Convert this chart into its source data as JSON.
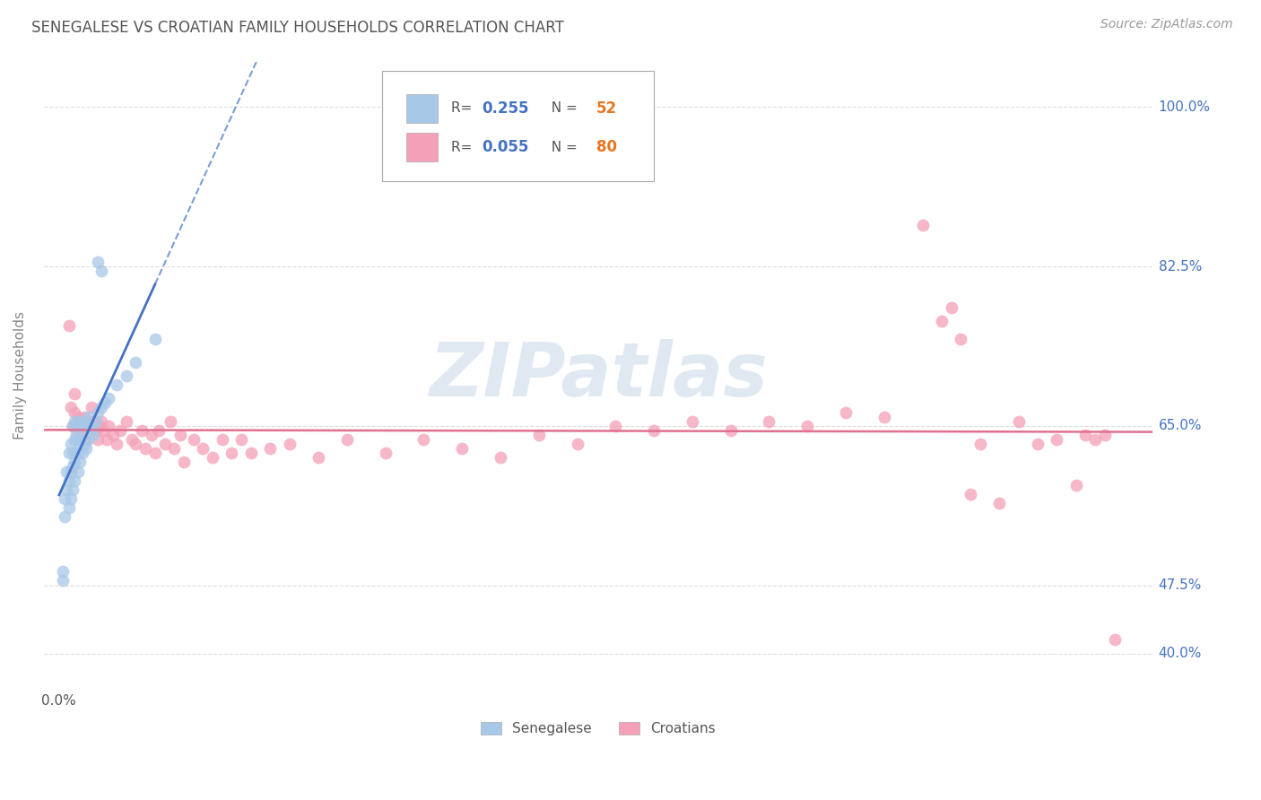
{
  "title": "SENEGALESE VS CROATIAN FAMILY HOUSEHOLDS CORRELATION CHART",
  "source": "Source: ZipAtlas.com",
  "ylabel": "Family Households",
  "senegalese_color": "#a8c8e8",
  "croatian_color": "#f4a0b8",
  "senegalese_line_color": "#4472c4",
  "croatian_line_color": "#e07090",
  "legend_R_color": "#4472c4",
  "legend_N_color": "#e87722",
  "background_color": "#ffffff",
  "grid_color": "#cccccc",
  "title_color": "#333333",
  "watermark_text": "ZIPatlas",
  "watermark_color": "#c8d8e8",
  "ytick_values": [
    40.0,
    47.5,
    65.0,
    82.5,
    100.0
  ],
  "ytick_labels": [
    "40.0%",
    "47.5%",
    "65.0%",
    "82.5%",
    "100.0%"
  ],
  "xlim_min": -0.08,
  "xlim_max": 5.7,
  "ylim_min": 36.0,
  "ylim_max": 105.0,
  "senegalese_R": "0.255",
  "senegalese_N": "52",
  "croatian_R": "0.055",
  "croatian_N": "80",
  "senegalese_x": [
    0.02,
    0.02,
    0.03,
    0.03,
    0.04,
    0.04,
    0.05,
    0.05,
    0.05,
    0.06,
    0.06,
    0.06,
    0.07,
    0.07,
    0.07,
    0.07,
    0.08,
    0.08,
    0.08,
    0.08,
    0.09,
    0.09,
    0.1,
    0.1,
    0.1,
    0.1,
    0.11,
    0.11,
    0.11,
    0.12,
    0.12,
    0.12,
    0.13,
    0.13,
    0.14,
    0.14,
    0.15,
    0.15,
    0.16,
    0.17,
    0.18,
    0.19,
    0.2,
    0.22,
    0.24,
    0.26,
    0.3,
    0.35,
    0.4,
    0.5,
    0.2,
    0.22
  ],
  "senegalese_y": [
    48.0,
    49.0,
    55.0,
    57.0,
    58.0,
    60.0,
    56.0,
    59.0,
    62.0,
    57.0,
    60.0,
    63.0,
    58.0,
    60.5,
    62.0,
    65.0,
    59.0,
    61.0,
    63.5,
    65.5,
    62.0,
    64.0,
    60.0,
    62.0,
    63.5,
    65.5,
    61.0,
    63.0,
    65.0,
    62.0,
    63.5,
    65.0,
    63.0,
    65.5,
    62.5,
    65.0,
    63.5,
    66.0,
    64.5,
    65.0,
    64.0,
    65.5,
    66.5,
    67.0,
    67.5,
    68.0,
    69.5,
    70.5,
    72.0,
    74.5,
    83.0,
    82.0
  ],
  "croatian_x": [
    0.05,
    0.06,
    0.07,
    0.08,
    0.08,
    0.09,
    0.1,
    0.1,
    0.11,
    0.12,
    0.13,
    0.14,
    0.15,
    0.15,
    0.16,
    0.17,
    0.18,
    0.19,
    0.2,
    0.21,
    0.22,
    0.23,
    0.25,
    0.26,
    0.28,
    0.3,
    0.32,
    0.35,
    0.38,
    0.4,
    0.43,
    0.45,
    0.48,
    0.5,
    0.52,
    0.55,
    0.58,
    0.6,
    0.63,
    0.65,
    0.7,
    0.75,
    0.8,
    0.85,
    0.9,
    0.95,
    1.0,
    1.1,
    1.2,
    1.35,
    1.5,
    1.7,
    1.9,
    2.1,
    2.3,
    2.5,
    2.7,
    2.9,
    3.1,
    3.3,
    3.5,
    3.7,
    3.9,
    4.1,
    4.3,
    4.5,
    4.6,
    4.65,
    4.7,
    4.75,
    4.8,
    4.9,
    5.0,
    5.1,
    5.2,
    5.3,
    5.35,
    5.4,
    5.45,
    5.5
  ],
  "croatian_y": [
    76.0,
    67.0,
    65.0,
    66.5,
    68.5,
    65.0,
    64.5,
    66.0,
    65.0,
    65.5,
    66.0,
    63.5,
    64.0,
    65.5,
    65.0,
    67.0,
    65.5,
    64.5,
    63.5,
    65.0,
    65.5,
    64.5,
    63.5,
    65.0,
    64.0,
    63.0,
    64.5,
    65.5,
    63.5,
    63.0,
    64.5,
    62.5,
    64.0,
    62.0,
    64.5,
    63.0,
    65.5,
    62.5,
    64.0,
    61.0,
    63.5,
    62.5,
    61.5,
    63.5,
    62.0,
    63.5,
    62.0,
    62.5,
    63.0,
    61.5,
    63.5,
    62.0,
    63.5,
    62.5,
    61.5,
    64.0,
    63.0,
    65.0,
    64.5,
    65.5,
    64.5,
    65.5,
    65.0,
    66.5,
    66.0,
    87.0,
    76.5,
    78.0,
    74.5,
    57.5,
    63.0,
    56.5,
    65.5,
    63.0,
    63.5,
    58.5,
    64.0,
    63.5,
    64.0,
    41.5
  ]
}
